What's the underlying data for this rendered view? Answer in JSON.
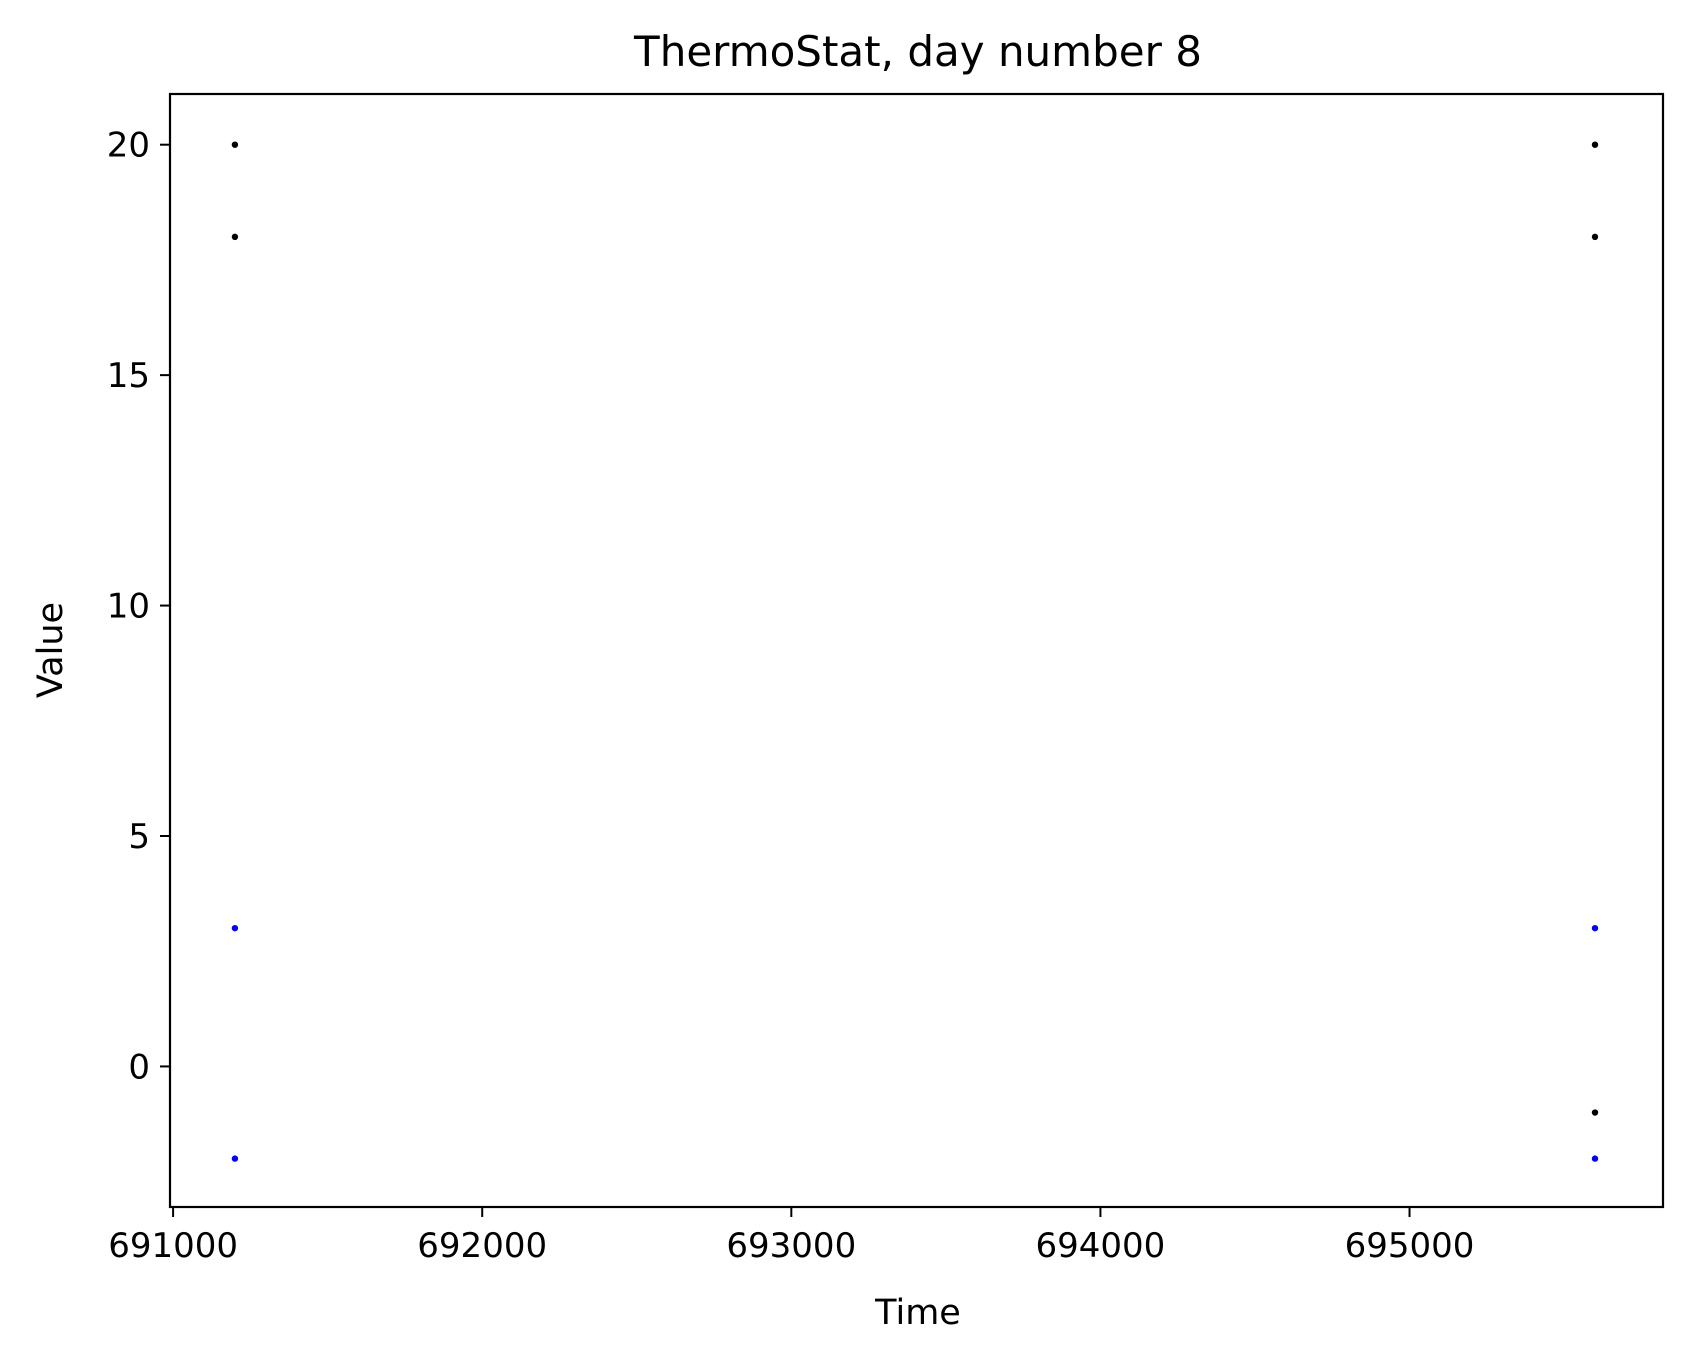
{
  "chart_data": {
    "type": "scatter",
    "title": "ThermoStat, day number 8",
    "xlabel": "Time",
    "ylabel": "Value",
    "xlim": [
      690990,
      695820
    ],
    "ylim": [
      -3.05,
      21.1
    ],
    "x_ticks": [
      {
        "value": 691000,
        "label": "691000"
      },
      {
        "value": 692000,
        "label": "692000"
      },
      {
        "value": 693000,
        "label": "693000"
      },
      {
        "value": 694000,
        "label": "694000"
      },
      {
        "value": 695000,
        "label": "695000"
      }
    ],
    "y_ticks": [
      {
        "value": 0,
        "label": "0"
      },
      {
        "value": 5,
        "label": "5"
      },
      {
        "value": 10,
        "label": "10"
      },
      {
        "value": 15,
        "label": "15"
      },
      {
        "value": 20,
        "label": "20"
      }
    ],
    "grid": false,
    "legend": "none",
    "series": [
      {
        "color": "#000000",
        "points": [
          {
            "x": 691200,
            "y": 20
          },
          {
            "x": 691200,
            "y": 18
          },
          {
            "x": 695600,
            "y": 20
          },
          {
            "x": 695600,
            "y": 18
          },
          {
            "x": 695600,
            "y": -1
          }
        ]
      },
      {
        "color": "#0000ff",
        "points": [
          {
            "x": 691200,
            "y": 3
          },
          {
            "x": 691200,
            "y": -2
          },
          {
            "x": 695600,
            "y": 3
          },
          {
            "x": 695600,
            "y": -2
          }
        ]
      }
    ]
  }
}
